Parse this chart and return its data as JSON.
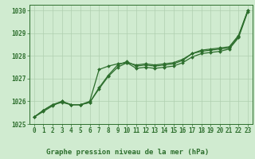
{
  "xlabel": "Graphe pression niveau de la mer (hPa)",
  "hours": [
    0,
    1,
    2,
    3,
    4,
    5,
    6,
    7,
    8,
    9,
    10,
    11,
    12,
    13,
    14,
    15,
    16,
    17,
    18,
    19,
    20,
    21,
    22,
    23
  ],
  "line1": [
    1025.3,
    1025.6,
    1025.85,
    1025.95,
    1025.85,
    1025.85,
    1025.95,
    1026.6,
    1027.15,
    1027.6,
    1027.75,
    1027.55,
    1027.6,
    1027.55,
    1027.6,
    1027.65,
    1027.8,
    1028.1,
    1028.2,
    1028.25,
    1028.3,
    1028.35,
    1028.85,
    1030.0
  ],
  "line2": [
    1025.3,
    1025.55,
    1025.8,
    1026.0,
    1025.85,
    1025.85,
    1025.95,
    1026.55,
    1027.1,
    1027.5,
    1027.7,
    1027.45,
    1027.5,
    1027.45,
    1027.5,
    1027.55,
    1027.7,
    1027.95,
    1028.1,
    1028.15,
    1028.2,
    1028.3,
    1028.8,
    1029.95
  ],
  "line3": [
    1025.3,
    1025.6,
    1025.85,
    1026.0,
    1025.85,
    1025.85,
    1026.0,
    1027.4,
    1027.55,
    1027.65,
    1027.7,
    1027.6,
    1027.65,
    1027.6,
    1027.65,
    1027.7,
    1027.85,
    1028.1,
    1028.25,
    1028.3,
    1028.35,
    1028.4,
    1028.9,
    1030.0
  ],
  "ylim_min": 1025.0,
  "ylim_max": 1030.25,
  "yticks": [
    1025,
    1026,
    1027,
    1028,
    1029,
    1030
  ],
  "bg_color": "#d0ebd0",
  "line_color": "#2d6e2d",
  "grid_color": "#b0cfb0",
  "tick_color": "#2d6e2d",
  "label_color": "#2d6e2d",
  "marker": "D",
  "marker_size": 2.0,
  "linewidth": 0.9,
  "tick_fontsize": 5.5,
  "xlabel_fontsize": 6.5
}
